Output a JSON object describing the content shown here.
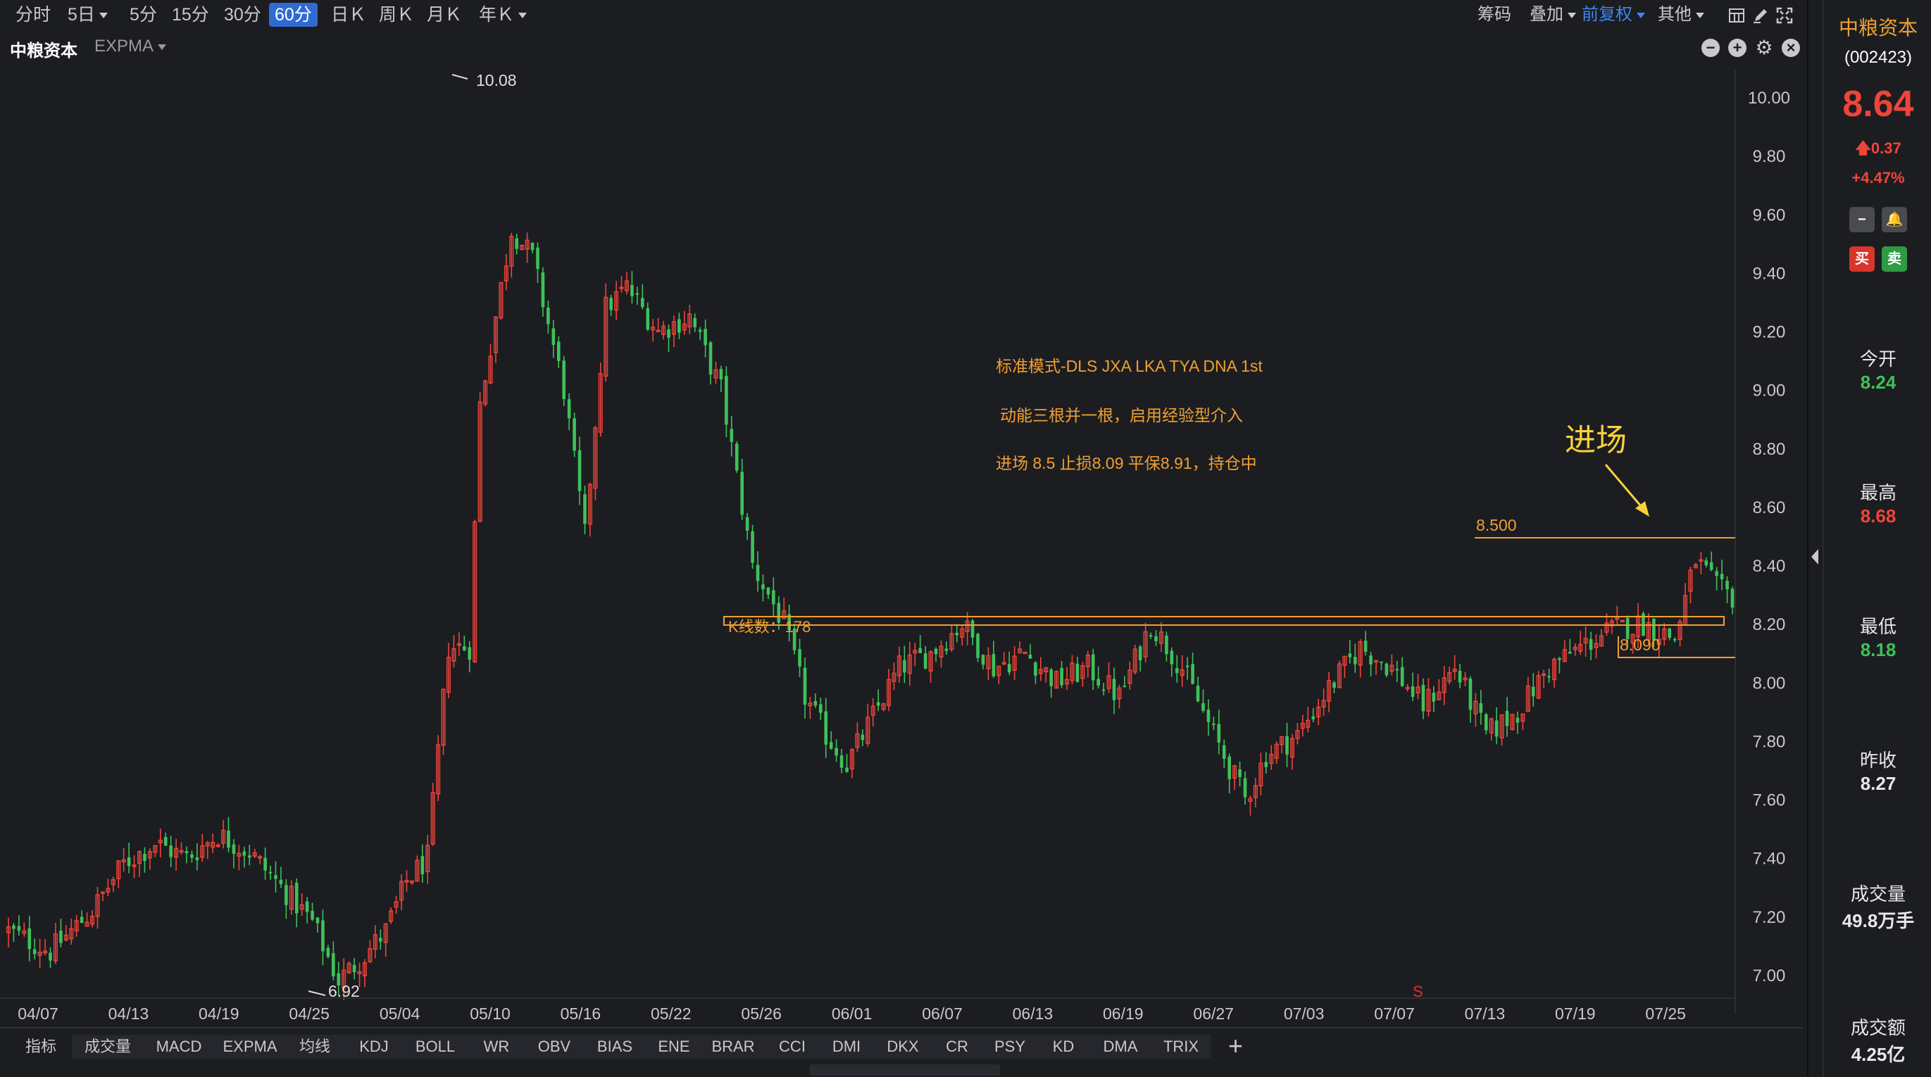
{
  "period_tabs": [
    {
      "label": "分时",
      "active": false,
      "caret": false
    },
    {
      "label": "5日",
      "active": false,
      "caret": true
    },
    {
      "label": "5分",
      "active": false,
      "caret": false
    },
    {
      "label": "15分",
      "active": false,
      "caret": false
    },
    {
      "label": "30分",
      "active": false,
      "caret": false
    },
    {
      "label": "60分",
      "active": true,
      "caret": false
    },
    {
      "label": "日Ｋ",
      "active": false,
      "caret": false
    },
    {
      "label": "周Ｋ",
      "active": false,
      "caret": false
    },
    {
      "label": "月Ｋ",
      "active": false,
      "caret": false
    },
    {
      "label": "年Ｋ",
      "active": false,
      "caret": true
    }
  ],
  "toolbar_right": {
    "chips": "筹码",
    "overlay": "叠加",
    "adjust": "前复权",
    "other": "其他"
  },
  "stock": {
    "name": "中粮资本",
    "indicator": "EXPMA"
  },
  "colors": {
    "up": "#f0443a",
    "down": "#3ec15a",
    "annotation": "#f0a030",
    "background": "#1c1d21",
    "accent_yellow": "#f7d23a"
  },
  "chart_data": {
    "type": "candlestick",
    "period": "60分",
    "ylim": [
      6.9,
      10.12
    ],
    "y_ticks": [
      "10.00",
      "9.80",
      "9.60",
      "9.40",
      "9.20",
      "9.00",
      "8.80",
      "8.60",
      "8.40",
      "8.20",
      "8.00",
      "7.80",
      "7.60",
      "7.40",
      "7.20",
      "7.00"
    ],
    "x_ticks": [
      "04/07",
      "04/13",
      "04/19",
      "04/25",
      "05/04",
      "05/10",
      "05/16",
      "05/22",
      "05/26",
      "06/01",
      "06/07",
      "06/13",
      "06/19",
      "06/27",
      "07/03",
      "07/07",
      "07/13",
      "07/19",
      "07/25"
    ],
    "candle_count": 330,
    "path_keypoints": [
      [
        0,
        7.15
      ],
      [
        8,
        7.08
      ],
      [
        16,
        7.22
      ],
      [
        22,
        7.38
      ],
      [
        28,
        7.45
      ],
      [
        34,
        7.4
      ],
      [
        40,
        7.48
      ],
      [
        46,
        7.42
      ],
      [
        52,
        7.3
      ],
      [
        58,
        7.18
      ],
      [
        63,
        6.98
      ],
      [
        67,
        7.05
      ],
      [
        72,
        7.15
      ],
      [
        76,
        7.32
      ],
      [
        80,
        7.4
      ],
      [
        84,
        8.12
      ],
      [
        88,
        8.12
      ],
      [
        90,
        8.95
      ],
      [
        96,
        9.55
      ],
      [
        100,
        9.45
      ],
      [
        106,
        9.0
      ],
      [
        110,
        8.5
      ],
      [
        114,
        9.28
      ],
      [
        118,
        9.35
      ],
      [
        124,
        9.2
      ],
      [
        130,
        9.25
      ],
      [
        136,
        9.0
      ],
      [
        142,
        8.4
      ],
      [
        148,
        8.2
      ],
      [
        152,
        7.95
      ],
      [
        156,
        7.82
      ],
      [
        160,
        7.72
      ],
      [
        164,
        7.85
      ],
      [
        170,
        8.05
      ],
      [
        176,
        8.1
      ],
      [
        182,
        8.2
      ],
      [
        188,
        8.05
      ],
      [
        194,
        8.1
      ],
      [
        200,
        8.0
      ],
      [
        206,
        8.05
      ],
      [
        212,
        7.95
      ],
      [
        218,
        8.2
      ],
      [
        224,
        8.05
      ],
      [
        230,
        7.82
      ],
      [
        236,
        7.6
      ],
      [
        240,
        7.75
      ],
      [
        246,
        7.82
      ],
      [
        252,
        7.98
      ],
      [
        258,
        8.12
      ],
      [
        264,
        8.05
      ],
      [
        270,
        7.92
      ],
      [
        276,
        8.05
      ],
      [
        282,
        7.82
      ],
      [
        288,
        7.9
      ],
      [
        294,
        8.05
      ],
      [
        300,
        8.12
      ],
      [
        306,
        8.18
      ],
      [
        312,
        8.2
      ],
      [
        318,
        8.15
      ],
      [
        322,
        8.42
      ],
      [
        326,
        8.32
      ],
      [
        330,
        8.28
      ],
      [
        334,
        8.62
      ],
      [
        338,
        8.64
      ]
    ],
    "annotations": {
      "max_label": "10.08",
      "min_label": "6.92",
      "text_line1": "标准模式-DLS JXA LKA TYA  DNA 1st",
      "text_line2": "动能三根并一根，启用经验型介入",
      "text_line3": "进场 8.5 止损8.09 平保8.91，持仓中",
      "entry_label": "进场",
      "level_entry": "8.500",
      "level_stop": "8.090",
      "box_label": "K线数：178",
      "sell_marker": "S"
    }
  },
  "bottom_tabs": [
    "指标",
    "成交量",
    "MACD",
    "EXPMA",
    "均线",
    "KDJ",
    "BOLL",
    "WR",
    "OBV",
    "BIAS",
    "ENE",
    "BRAR",
    "CCI",
    "DMI",
    "DKX",
    "CR",
    "PSY",
    "KD",
    "DMA",
    "TRIX"
  ],
  "side": {
    "name": "中粮资本",
    "code": "(002423)",
    "price": "8.64",
    "change": "0.37",
    "pct": "+4.47%",
    "buy": "买",
    "sell": "卖",
    "stats": [
      {
        "label": "今开",
        "value": "8.24",
        "color": "green"
      },
      {
        "label": "最高",
        "value": "8.68",
        "color": "red"
      },
      {
        "label": "最低",
        "value": "8.18",
        "color": "green"
      },
      {
        "label": "昨收",
        "value": "8.27",
        "color": "white"
      },
      {
        "label": "成交量",
        "value": "49.8万手",
        "color": "white"
      },
      {
        "label": "成交额",
        "value": "4.25亿",
        "color": "white"
      }
    ]
  }
}
